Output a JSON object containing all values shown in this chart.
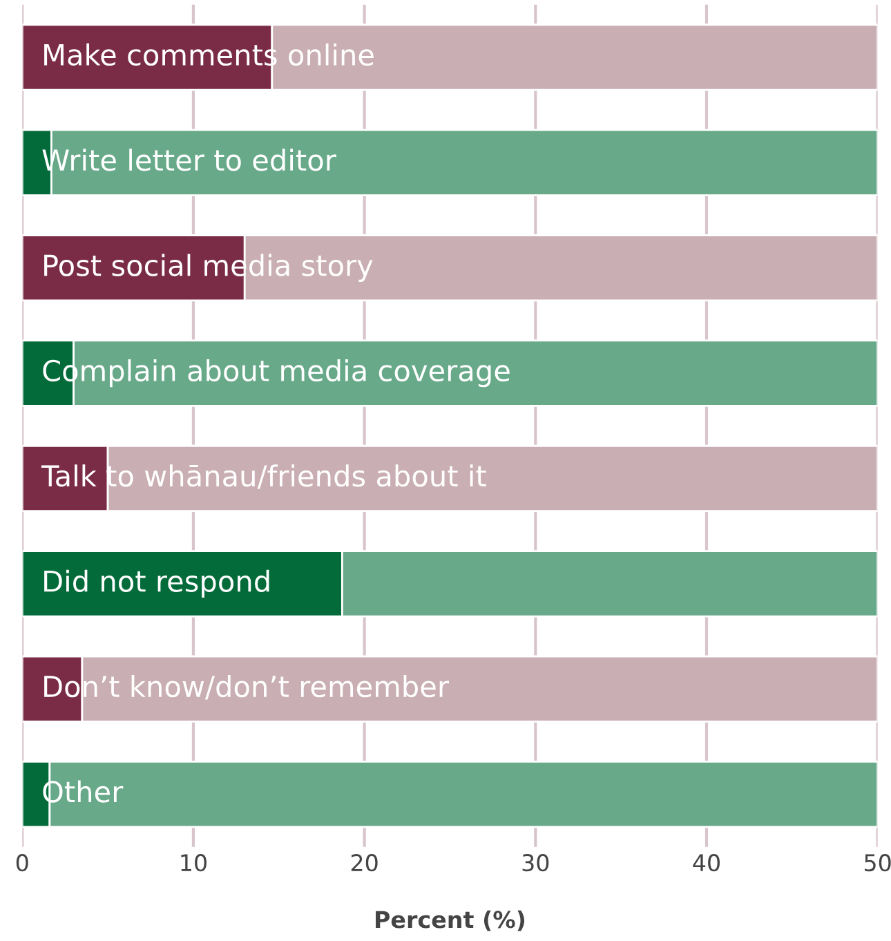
{
  "chart_data": {
    "type": "bar",
    "orientation": "horizontal",
    "stacked": true,
    "categories": [
      "Make comments online",
      "Write letter to editor",
      "Post social media story",
      "Complain about media coverage",
      "Talk to whānau/friends about it",
      "Did not respond",
      "Don’t know/don’t remember",
      "Other"
    ],
    "series": [
      {
        "colors": [
          "#7a2c47",
          "#036b3a",
          "#7a2c47",
          "#036b3a",
          "#7a2c47",
          "#036b3a",
          "#7a2c47",
          "#036b3a"
        ],
        "values": [
          14.6,
          1.7,
          13.0,
          3.0,
          5.0,
          18.7,
          3.5,
          1.6
        ]
      },
      {
        "colors": [
          "#c9aeb3",
          "#67a989",
          "#c9aeb3",
          "#67a989",
          "#c9aeb3",
          "#67a989",
          "#c9aeb3",
          "#67a989"
        ],
        "values": [
          35.4,
          48.3,
          37.0,
          47.0,
          45.0,
          31.3,
          46.5,
          48.4
        ]
      }
    ],
    "xlim": [
      0,
      50
    ],
    "xticks": [
      0,
      10,
      20,
      30,
      40,
      50
    ],
    "xlabel": "Percent (%)",
    "grid": "x",
    "legend": false
  }
}
